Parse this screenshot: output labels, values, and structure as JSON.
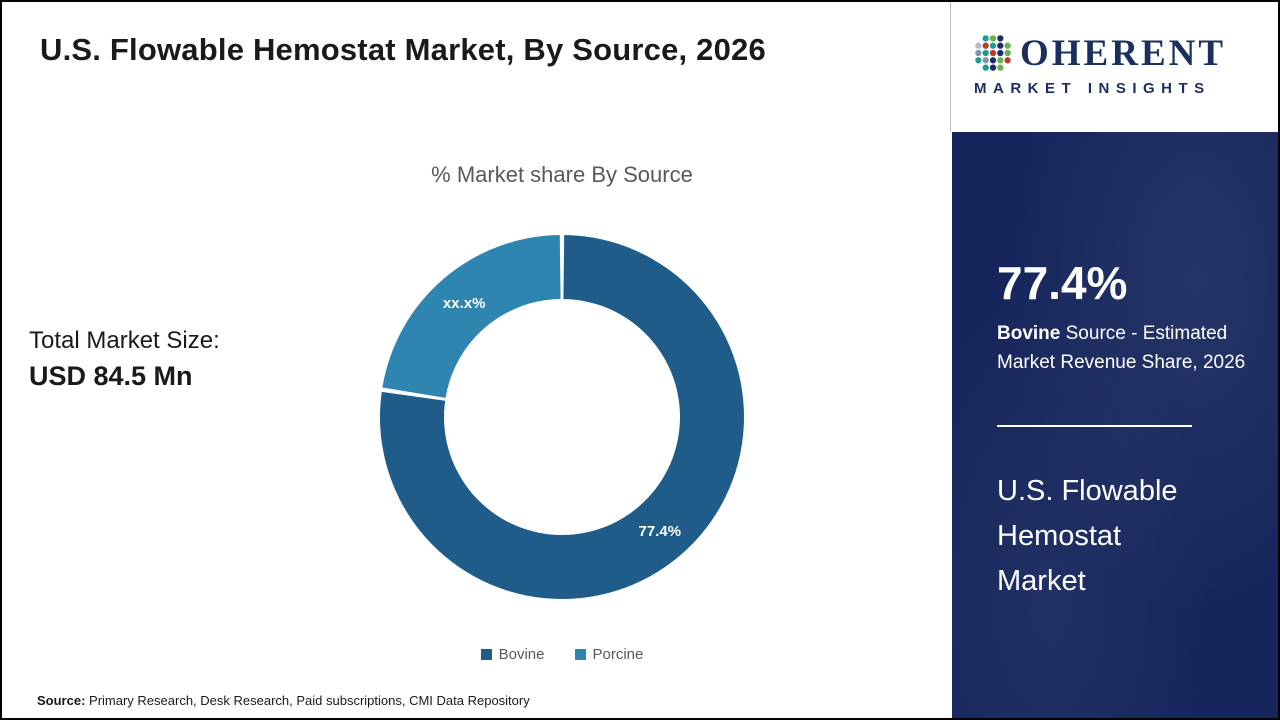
{
  "page": {
    "title": "U.S. Flowable Hemostat Market, By Source, 2026",
    "footer": {
      "label": "Source:",
      "text": " Primary Research, Desk Research, Paid subscriptions, CMI Data Repository"
    }
  },
  "logo": {
    "wordmark": "OHERENT",
    "tagline": "MARKET INSIGHTS"
  },
  "summary": {
    "label": "Total Market Size:",
    "value": "USD 84.5 Mn"
  },
  "chart_data": {
    "type": "pie",
    "donut": true,
    "title": "% Market share By Source",
    "categories": [
      "Bovine",
      "Porcine"
    ],
    "values": [
      77.4,
      22.6
    ],
    "slice_labels": [
      "77.4%",
      "xx.x%"
    ],
    "colors": [
      "#1F5C8A",
      "#2E86B0"
    ],
    "legend_position": "bottom",
    "start_angle_deg": 0,
    "direction": "clockwise"
  },
  "sidebar": {
    "stat_value": "77.4%",
    "stat_desc_bold": "Bovine",
    "stat_desc_rest": " Source - Estimated Market Revenue Share, 2026",
    "market_name": "U.S. Flowable Hemostat Market"
  }
}
